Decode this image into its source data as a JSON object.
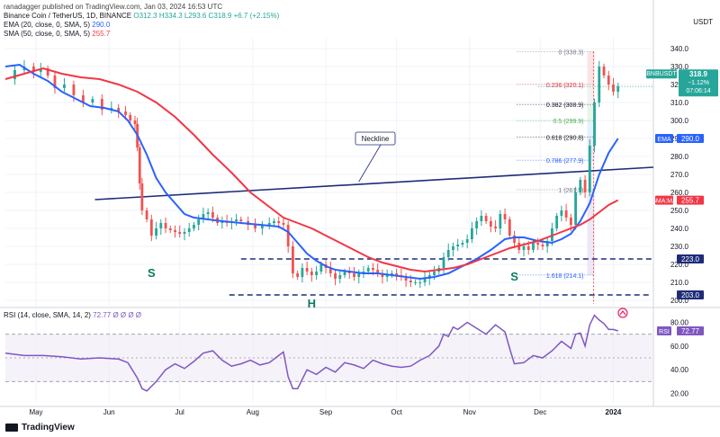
{
  "publisher_line": "ranadagger published on TradingView.com, Jan 03, 2024 16:53 UTC",
  "currency": "USDT",
  "header": {
    "symbol": "Binance Coin / TetherUS, 1D, BINANCE",
    "ohlc": "O312.3 H334.3 L293.6 C318.9 +6.7 (+2.15%)",
    "ema_label": "EMA (20, close, 0, SMA, 5)",
    "ema_value": "290.0",
    "sma_label": "SMA (50, close, 0, SMA, 5)",
    "sma_value": "255.7",
    "rsi_label": "RSI (14, close, SMA, 14, 2)",
    "rsi_value": "72.77",
    "rsi_extra": "Ø Ø Ø Ø"
  },
  "brand": "TradingView",
  "chart_data": {
    "type": "line",
    "title": "Binance Coin / TetherUS, 1D, BINANCE",
    "x_ticks": [
      "May",
      "Jun",
      "Jul",
      "Aug",
      "Sep",
      "Oct",
      "Nov",
      "Dec",
      "2024"
    ],
    "y_ticks": [
      200,
      210,
      220,
      230,
      240,
      250,
      260,
      270,
      280,
      290,
      300,
      310,
      320,
      330,
      340
    ],
    "ylim": [
      198,
      346
    ],
    "rsi_ticks": [
      20,
      40,
      60,
      80
    ],
    "rsi_lim": [
      12,
      88
    ],
    "series": [
      {
        "name": "BNBUSDT",
        "color": "#26a69a",
        "values": [
          [
            0,
            323
          ],
          [
            4,
            328
          ],
          [
            8,
            330
          ],
          [
            12,
            327
          ],
          [
            15,
            329
          ],
          [
            18,
            325
          ],
          [
            21,
            318
          ],
          [
            25,
            320
          ],
          [
            29,
            314
          ],
          [
            33,
            310
          ],
          [
            37,
            312
          ],
          [
            41,
            306
          ],
          [
            45,
            307
          ],
          [
            48,
            305
          ],
          [
            51,
            303
          ],
          [
            53,
            300
          ],
          [
            55,
            298
          ],
          [
            56,
            285
          ],
          [
            57,
            265
          ],
          [
            58,
            250
          ],
          [
            60,
            245
          ],
          [
            62,
            236
          ],
          [
            64,
            240
          ],
          [
            66,
            243
          ],
          [
            68,
            240
          ],
          [
            70,
            239
          ],
          [
            72,
            238
          ],
          [
            74,
            237
          ],
          [
            76,
            238
          ],
          [
            78,
            240
          ],
          [
            80,
            242
          ],
          [
            82,
            245
          ],
          [
            84,
            248
          ],
          [
            86,
            249
          ],
          [
            88,
            246
          ],
          [
            90,
            243
          ],
          [
            92,
            244
          ],
          [
            94,
            243
          ],
          [
            96,
            244
          ],
          [
            98,
            245
          ],
          [
            100,
            244
          ],
          [
            103,
            242
          ],
          [
            106,
            240
          ],
          [
            109,
            242
          ],
          [
            112,
            243
          ],
          [
            114,
            244
          ],
          [
            116,
            243
          ],
          [
            118,
            242
          ],
          [
            120,
            230
          ],
          [
            122,
            215
          ],
          [
            124,
            213
          ],
          [
            126,
            218
          ],
          [
            128,
            216
          ],
          [
            130,
            214
          ],
          [
            132,
            216
          ],
          [
            134,
            220
          ],
          [
            136,
            218
          ],
          [
            138,
            215
          ],
          [
            140,
            212
          ],
          [
            142,
            214
          ],
          [
            144,
            216
          ],
          [
            146,
            215
          ],
          [
            148,
            213
          ],
          [
            150,
            215
          ],
          [
            152,
            216
          ],
          [
            154,
            218
          ],
          [
            156,
            217
          ],
          [
            158,
            215
          ],
          [
            160,
            213
          ],
          [
            162,
            214
          ],
          [
            164,
            215
          ],
          [
            166,
            214
          ],
          [
            168,
            213
          ],
          [
            170,
            211
          ],
          [
            172,
            210
          ],
          [
            174,
            210
          ],
          [
            176,
            210
          ],
          [
            178,
            212
          ],
          [
            180,
            214
          ],
          [
            182,
            216
          ],
          [
            184,
            218
          ],
          [
            186,
            224
          ],
          [
            188,
            228
          ],
          [
            190,
            230
          ],
          [
            192,
            231
          ],
          [
            194,
            232
          ],
          [
            196,
            234
          ],
          [
            198,
            240
          ],
          [
            200,
            244
          ],
          [
            202,
            247
          ],
          [
            204,
            244
          ],
          [
            206,
            241
          ],
          [
            208,
            240
          ],
          [
            210,
            248
          ],
          [
            212,
            245
          ],
          [
            214,
            236
          ],
          [
            216,
            232
          ],
          [
            218,
            228
          ],
          [
            220,
            230
          ],
          [
            222,
            228
          ],
          [
            224,
            232
          ],
          [
            226,
            231
          ],
          [
            228,
            230
          ],
          [
            230,
            233
          ],
          [
            232,
            240
          ],
          [
            234,
            247
          ],
          [
            236,
            250
          ],
          [
            238,
            246
          ],
          [
            240,
            242
          ],
          [
            242,
            260
          ],
          [
            244,
            267
          ],
          [
            246,
            260
          ],
          [
            248,
            286
          ],
          [
            250,
            310
          ],
          [
            252,
            330
          ],
          [
            254,
            325
          ],
          [
            256,
            320
          ],
          [
            258,
            316
          ],
          [
            260,
            318.9
          ]
        ]
      },
      {
        "name": "EMA (20)",
        "color": "#2962ff",
        "values": [
          [
            0,
            330
          ],
          [
            6,
            331
          ],
          [
            12,
            326
          ],
          [
            18,
            322
          ],
          [
            24,
            316
          ],
          [
            30,
            312
          ],
          [
            36,
            308
          ],
          [
            42,
            307
          ],
          [
            48,
            305
          ],
          [
            52,
            300
          ],
          [
            56,
            292
          ],
          [
            60,
            281
          ],
          [
            64,
            268
          ],
          [
            68,
            260
          ],
          [
            72,
            254
          ],
          [
            76,
            248
          ],
          [
            80,
            246
          ],
          [
            86,
            245
          ],
          [
            92,
            244
          ],
          [
            100,
            243
          ],
          [
            108,
            242
          ],
          [
            116,
            241
          ],
          [
            120,
            238
          ],
          [
            124,
            232
          ],
          [
            128,
            226
          ],
          [
            132,
            222
          ],
          [
            136,
            219
          ],
          [
            140,
            217
          ],
          [
            146,
            216
          ],
          [
            152,
            215
          ],
          [
            158,
            215
          ],
          [
            164,
            214
          ],
          [
            170,
            213
          ],
          [
            176,
            212
          ],
          [
            182,
            213
          ],
          [
            188,
            215
          ],
          [
            194,
            219
          ],
          [
            200,
            223
          ],
          [
            206,
            228
          ],
          [
            212,
            234
          ],
          [
            216,
            235
          ],
          [
            220,
            235
          ],
          [
            226,
            233
          ],
          [
            232,
            232
          ],
          [
            236,
            234
          ],
          [
            240,
            237
          ],
          [
            244,
            244
          ],
          [
            248,
            254
          ],
          [
            252,
            270
          ],
          [
            256,
            282
          ],
          [
            260,
            290
          ]
        ]
      },
      {
        "name": "SMA (50)",
        "color": "#f23645",
        "values": [
          [
            0,
            323
          ],
          [
            8,
            326
          ],
          [
            16,
            329
          ],
          [
            24,
            326
          ],
          [
            32,
            324
          ],
          [
            40,
            323
          ],
          [
            48,
            320
          ],
          [
            56,
            316
          ],
          [
            64,
            310
          ],
          [
            72,
            302
          ],
          [
            80,
            292
          ],
          [
            88,
            281
          ],
          [
            96,
            271
          ],
          [
            104,
            260
          ],
          [
            112,
            252
          ],
          [
            118,
            246
          ],
          [
            124,
            243
          ],
          [
            130,
            240
          ],
          [
            136,
            236
          ],
          [
            142,
            232
          ],
          [
            148,
            228
          ],
          [
            154,
            224
          ],
          [
            160,
            221
          ],
          [
            166,
            219
          ],
          [
            172,
            217
          ],
          [
            178,
            216
          ],
          [
            184,
            217
          ],
          [
            190,
            218
          ],
          [
            196,
            220
          ],
          [
            202,
            223
          ],
          [
            208,
            226
          ],
          [
            214,
            229
          ],
          [
            220,
            231
          ],
          [
            226,
            233
          ],
          [
            232,
            236
          ],
          [
            238,
            239
          ],
          [
            244,
            242
          ],
          [
            248,
            245
          ],
          [
            252,
            249
          ],
          [
            256,
            253
          ],
          [
            260,
            255.7
          ]
        ]
      },
      {
        "name": "RSI (14)",
        "color": "#7e57c2",
        "values": [
          [
            0,
            54
          ],
          [
            8,
            52
          ],
          [
            16,
            52
          ],
          [
            24,
            51
          ],
          [
            32,
            49
          ],
          [
            40,
            50
          ],
          [
            48,
            49
          ],
          [
            52,
            46
          ],
          [
            56,
            33
          ],
          [
            58,
            24
          ],
          [
            60,
            22
          ],
          [
            64,
            30
          ],
          [
            68,
            40
          ],
          [
            72,
            45
          ],
          [
            76,
            41
          ],
          [
            80,
            47
          ],
          [
            84,
            54
          ],
          [
            88,
            56
          ],
          [
            92,
            48
          ],
          [
            96,
            43
          ],
          [
            100,
            45
          ],
          [
            104,
            48
          ],
          [
            108,
            44
          ],
          [
            112,
            46
          ],
          [
            116,
            52
          ],
          [
            118,
            55
          ],
          [
            120,
            34
          ],
          [
            122,
            24
          ],
          [
            124,
            24
          ],
          [
            128,
            40
          ],
          [
            132,
            36
          ],
          [
            136,
            42
          ],
          [
            140,
            38
          ],
          [
            144,
            46
          ],
          [
            148,
            44
          ],
          [
            152,
            41
          ],
          [
            156,
            48
          ],
          [
            160,
            45
          ],
          [
            164,
            43
          ],
          [
            168,
            42
          ],
          [
            172,
            43
          ],
          [
            176,
            48
          ],
          [
            180,
            52
          ],
          [
            184,
            60
          ],
          [
            186,
            70
          ],
          [
            188,
            68
          ],
          [
            190,
            76
          ],
          [
            192,
            74
          ],
          [
            196,
            80
          ],
          [
            200,
            75
          ],
          [
            204,
            70
          ],
          [
            208,
            78
          ],
          [
            212,
            72
          ],
          [
            214,
            58
          ],
          [
            216,
            45
          ],
          [
            220,
            46
          ],
          [
            224,
            52
          ],
          [
            228,
            50
          ],
          [
            232,
            56
          ],
          [
            236,
            64
          ],
          [
            240,
            58
          ],
          [
            242,
            70
          ],
          [
            244,
            71
          ],
          [
            246,
            60
          ],
          [
            248,
            78
          ],
          [
            250,
            86
          ],
          [
            252,
            82
          ],
          [
            254,
            79
          ],
          [
            256,
            74
          ],
          [
            258,
            74
          ],
          [
            260,
            72.77
          ]
        ]
      }
    ],
    "fib_levels": [
      {
        "label": "0 (338.3)",
        "value": 338.3,
        "color": "#787b86"
      },
      {
        "label": "0.236 (320.1)",
        "value": 320.1,
        "color": "#f23645"
      },
      {
        "label": "0.382 (308.9)",
        "value": 308.9,
        "color": "#131722"
      },
      {
        "label": "0.5 (299.9)",
        "value": 299.9,
        "color": "#4caf50"
      },
      {
        "label": "0.618 (290.8)",
        "value": 290.8,
        "color": "#131722"
      },
      {
        "label": "0.786 (277.9)",
        "value": 277.9,
        "color": "#2962ff"
      },
      {
        "label": "1 (261.5)",
        "value": 261.5,
        "color": "#787b86"
      },
      {
        "label": "1.618 (214.1)",
        "value": 214.1,
        "color": "#2962ff"
      }
    ],
    "annotations": {
      "neckline": "Neckline",
      "left_shoulder": "S",
      "head": "H",
      "right_shoulder": "S"
    },
    "price_tags": [
      {
        "label": "BNBUSDT",
        "value": "318.9",
        "change": "−1.12%",
        "timer": "07:06:14",
        "color": "#26a69a"
      },
      {
        "label": "EMA",
        "value": "290.0",
        "color": "#2962ff"
      },
      {
        "label": "SMA:MA",
        "value": "255.7",
        "color": "#f23645"
      },
      {
        "label": "",
        "value": "223.0",
        "color": "#1e2c78"
      },
      {
        "label": "",
        "value": "203.0",
        "color": "#1e2c78"
      }
    ],
    "rsi_tag": {
      "label": "RSI",
      "value": "72.77"
    },
    "support_levels": [
      223,
      203
    ],
    "colors": {
      "up": "#26a69a",
      "down": "#ef5350",
      "ema": "#2962ff",
      "sma": "#f23645",
      "rsi": "#7e57c2",
      "line": "#1e2c78"
    }
  }
}
